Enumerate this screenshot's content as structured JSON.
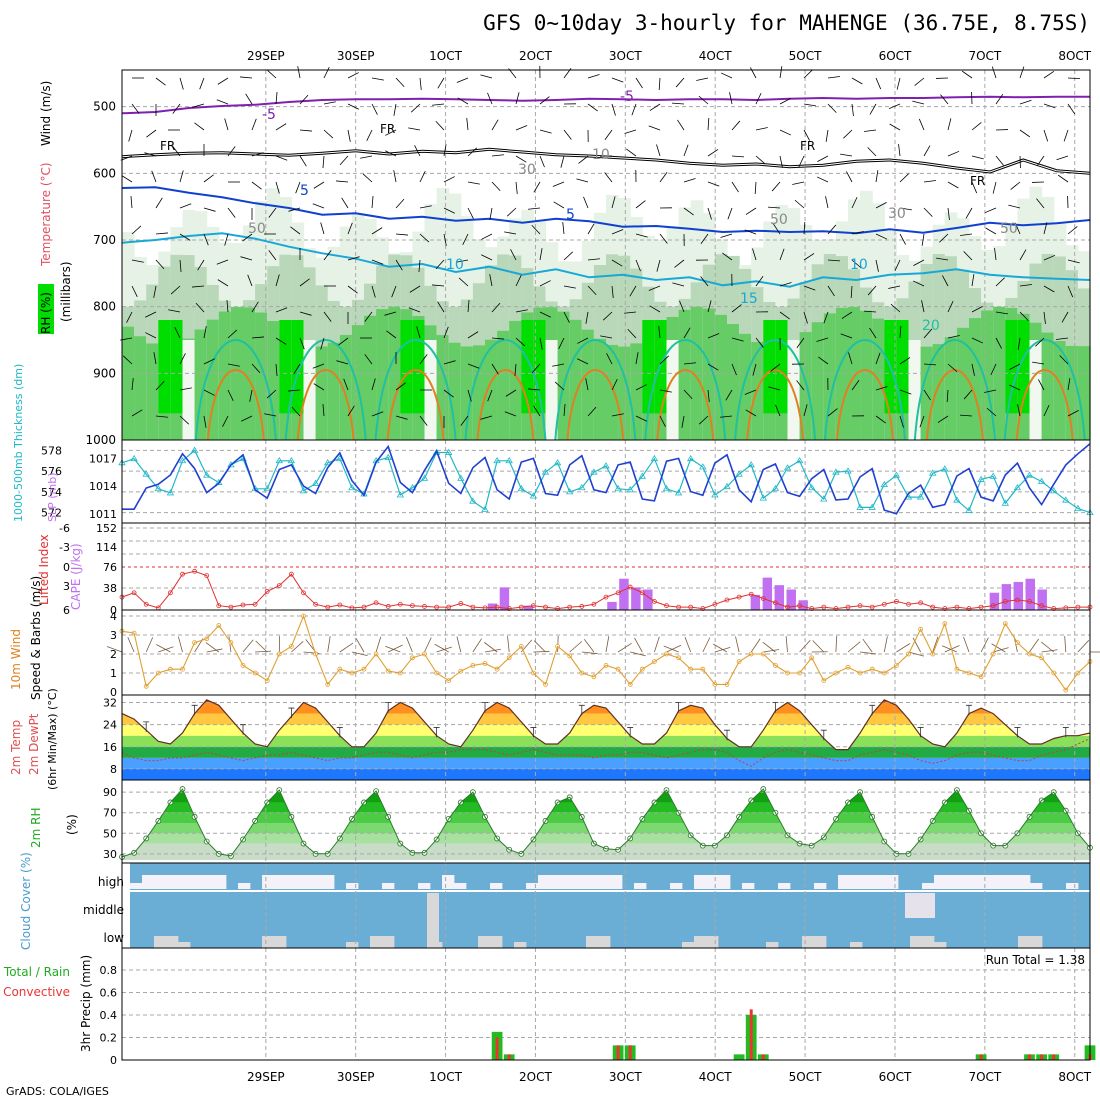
{
  "title": "GFS 0~10day 3-hourly for MAHENGE (36.75E, 8.75S)",
  "footer": "GrADS: COLA/IGES",
  "x_tick_labels": [
    "29SEP",
    "30SEP",
    "1OCT",
    "2OCT",
    "3OCT",
    "4OCT",
    "5OCT",
    "6OCT",
    "7OCT",
    "8OCT"
  ],
  "colors": {
    "grid": "#a8a8a8",
    "rh_green": "#00dd00",
    "temp_blue": "#1040d0",
    "temp_cyan": "#18a8d8",
    "thickness": "#20b8c8",
    "slp": "#2040d0",
    "cape": "#c070f0",
    "lifted": "#e03030",
    "wind": "#e0a030",
    "rain_total": "#22bb22",
    "rain_conv": "#ee3333",
    "cloud": "#6aaed6",
    "cloud_clear": "#f4f1f8"
  },
  "chart_data": [
    {
      "type": "area",
      "name": "upper-air",
      "ylabel_parts": [
        "RH (%)",
        "Temperature (°C)",
        "Wind (m/s)"
      ],
      "ylabel_unit": "(millibars)",
      "y_ticks": [
        500,
        600,
        700,
        800,
        900,
        1000
      ],
      "contour_labels": [
        "FR",
        "FR",
        "FR",
        "FR",
        "-5",
        "-5",
        "5",
        "5",
        "10",
        "10",
        "15",
        "20",
        "50",
        "50",
        "30",
        "10",
        "50",
        "30"
      ],
      "freezing_level_mb": [
        575,
        572,
        570,
        569,
        571,
        573,
        570,
        566,
        571,
        567,
        569,
        564,
        568,
        572,
        574,
        577,
        580,
        585,
        588,
        586,
        590,
        588,
        582,
        580,
        585,
        592,
        598,
        580,
        596,
        600
      ],
      "minus5_mb": [
        510,
        508,
        502,
        499,
        497,
        493,
        490,
        489,
        489,
        488,
        489,
        490,
        491,
        490,
        488,
        489,
        490,
        489,
        489,
        490,
        488,
        487,
        488,
        487,
        487,
        486,
        485,
        486,
        485,
        485
      ],
      "plus5_mb": [
        622,
        621,
        629,
        636,
        645,
        652,
        662,
        660,
        668,
        665,
        671,
        668,
        674,
        668,
        672,
        680,
        679,
        683,
        688,
        686,
        688,
        687,
        690,
        684,
        689,
        682,
        674,
        678,
        675,
        670
      ],
      "plus10_mb": [
        704,
        700,
        694,
        690,
        698,
        710,
        720,
        728,
        740,
        736,
        748,
        740,
        752,
        744,
        756,
        752,
        760,
        756,
        768,
        762,
        770,
        756,
        760,
        752,
        750,
        744,
        752,
        756,
        758,
        760
      ]
    },
    {
      "type": "line",
      "name": "thickness-slp",
      "ylabel_left": "1000-500mb Thickness (dm)",
      "ylabel_right": "SLP (mb)",
      "left_ticks": [
        578,
        576,
        574,
        572
      ],
      "right_ticks": [
        1017,
        1014,
        1011
      ],
      "series": [
        {
          "name": "Thickness",
          "values": [
            576.8,
            577.2,
            575.7,
            574.3,
            573.9,
            577.0,
            578.0,
            575.6,
            574.9,
            576.6,
            577.2,
            574.3,
            574.3,
            577.0,
            577.0,
            574.1,
            574.8,
            576.8,
            577.2,
            574.4,
            573.8,
            577.0,
            577.3,
            573.7,
            574.4,
            575.3,
            577.8,
            577.8,
            575.3,
            573.1,
            572.3,
            577.0,
            577.0,
            574.3,
            573.6,
            575.9,
            576.8,
            574.0,
            574.4,
            575.9,
            576.5,
            574.3,
            574.2,
            575.5,
            577.2,
            574.3,
            573.9,
            577.2,
            576.4,
            573.7,
            574.5,
            575.7,
            576.6,
            573.4,
            574.3,
            576.3,
            577.0,
            574.4,
            573.3,
            575.9,
            576.0,
            572.5,
            572.5,
            574.7,
            575.6,
            573.5,
            573.5,
            575.8,
            576.2,
            573.2,
            572.2,
            575.2,
            575.5,
            572.9,
            574.4,
            575.6,
            575.0,
            574.1,
            573.2,
            572.4,
            572.0
          ]
        },
        {
          "name": "SLP",
          "values": [
            1011.5,
            1011.5,
            1013.8,
            1014.2,
            1015.2,
            1017.5,
            1015.9,
            1013.3,
            1014.3,
            1016.3,
            1017.4,
            1013.6,
            1012.7,
            1015.8,
            1016.3,
            1014.0,
            1013.2,
            1016.0,
            1017.6,
            1014.6,
            1013.0,
            1016.6,
            1018.3,
            1014.4,
            1013.3,
            1015.7,
            1017.8,
            1014.3,
            1013.2,
            1016.0,
            1017.1,
            1013.6,
            1012.6,
            1016.6,
            1017.0,
            1013.2,
            1013.0,
            1016.3,
            1017.3,
            1013.6,
            1013.3,
            1016.3,
            1016.6,
            1012.6,
            1012.4,
            1016.7,
            1017.0,
            1013.4,
            1013.0,
            1016.5,
            1017.4,
            1013.6,
            1012.3,
            1015.8,
            1016.4,
            1013.3,
            1012.9,
            1014.8,
            1015.8,
            1012.5,
            1012.6,
            1015.0,
            1015.9,
            1011.4,
            1011.0,
            1013.2,
            1014.1,
            1011.7,
            1012.0,
            1015.1,
            1015.9,
            1012.8,
            1012.4,
            1015.2,
            1016.5,
            1013.8,
            1012.0,
            1014.2,
            1016.3,
            1017.5,
            1018.6
          ]
        }
      ]
    },
    {
      "type": "bar",
      "name": "cape-lifted-index",
      "ylabel_left": "Lifted Index",
      "ylabel_right": "CAPE (J/kg)",
      "left_ticks": [
        "-6",
        "-3",
        "0",
        "3",
        "6"
      ],
      "right_ticks": [
        "152",
        "114",
        "76",
        "38",
        "0"
      ],
      "series": [
        {
          "name": "CAPE",
          "values": [
            0,
            0,
            0,
            0,
            0,
            0,
            0,
            0,
            0,
            0,
            0,
            0,
            0,
            0,
            0,
            0,
            0,
            0,
            0,
            0,
            0,
            0,
            0,
            0,
            0,
            0,
            0,
            0,
            0,
            0,
            0,
            12,
            42,
            0,
            8,
            0,
            0,
            0,
            0,
            0,
            0,
            15,
            58,
            42,
            38,
            0,
            0,
            0,
            0,
            0,
            0,
            0,
            0,
            28,
            60,
            46,
            38,
            18,
            0,
            0,
            0,
            0,
            0,
            0,
            0,
            0,
            0,
            0,
            0,
            0,
            0,
            0,
            0,
            32,
            48,
            52,
            58,
            38,
            0,
            0,
            0,
            0
          ]
        },
        {
          "name": "Lifted Index",
          "values": [
            4.2,
            3.6,
            5.2,
            5.7,
            3.6,
            1.0,
            0.6,
            1.2,
            5.4,
            5.6,
            5.3,
            5.2,
            3.4,
            2.6,
            1.0,
            3.6,
            5.2,
            5.6,
            5.3,
            5.7,
            5.6,
            5.0,
            5.5,
            5.2,
            5.4,
            5.5,
            5.6,
            5.6,
            5.1,
            5.6,
            5.7,
            5.6,
            5.8,
            5.6,
            5.4,
            5.6,
            5.8,
            5.6,
            5.5,
            5.2,
            4.2,
            3.6,
            2.8,
            3.6,
            4.8,
            5.4,
            5.6,
            5.6,
            5.8,
            5.2,
            4.6,
            4.2,
            3.8,
            4.4,
            5.0,
            5.6,
            5.4,
            5.8,
            5.6,
            5.8,
            5.6,
            5.4,
            5.6,
            5.2,
            4.8,
            5.2,
            5.0,
            5.6,
            5.8,
            5.6,
            5.8,
            5.6,
            5.4,
            4.8,
            4.6,
            4.8,
            5.4,
            5.8,
            5.7,
            5.6,
            5.6
          ]
        }
      ]
    },
    {
      "type": "line",
      "name": "10m-wind",
      "ylabel_left": "10m Wind",
      "ylabel_right": "Speed & Barbs (m/s)",
      "ylim": [
        0,
        4
      ],
      "series": [
        {
          "name": "Speed",
          "values": [
            3.2,
            3.1,
            0.3,
            1.0,
            1.2,
            1.2,
            2.6,
            2.8,
            3.5,
            2.6,
            1.4,
            1.0,
            0.6,
            2.0,
            2.4,
            4.0,
            2.0,
            0.4,
            1.2,
            1.0,
            1.2,
            2.0,
            1.1,
            1.0,
            1.8,
            2.0,
            1.0,
            0.6,
            1.1,
            1.4,
            1.5,
            1.2,
            1.8,
            2.4,
            1.0,
            0.4,
            2.4,
            1.9,
            1.0,
            0.8,
            1.4,
            1.2,
            0.4,
            1.2,
            1.6,
            2.0,
            1.8,
            1.2,
            1.2,
            0.4,
            0.4,
            1.6,
            2.0,
            2.0,
            1.4,
            1.0,
            1.0,
            1.8,
            0.6,
            1.0,
            1.3,
            1.0,
            1.2,
            1.0,
            1.4,
            2.0,
            3.3,
            2.0,
            3.6,
            1.2,
            1.0,
            0.8,
            2.0,
            3.6,
            2.6,
            2.0,
            1.8,
            1.0,
            0.1,
            1.0,
            1.6
          ]
        }
      ]
    },
    {
      "type": "area",
      "name": "2m-temp",
      "ylabel_left": "2m Temp",
      "ylabel_mid": "2m DewPt",
      "ylabel_right": "(6hr Min/Max) (°C)",
      "y_ticks": [
        32,
        24,
        16,
        8
      ],
      "series": [
        {
          "name": "Temperature",
          "values": [
            28,
            26,
            22,
            18,
            17,
            21,
            28,
            33,
            31,
            26,
            21,
            17,
            16,
            22,
            27,
            32,
            30,
            25,
            20,
            16,
            16,
            21,
            29,
            32,
            30,
            25,
            20,
            17,
            16,
            22,
            29,
            32,
            30,
            25,
            20,
            17,
            17,
            21,
            28,
            31,
            30,
            25,
            20,
            17,
            17,
            21,
            29,
            31,
            30,
            24,
            19,
            16,
            16,
            22,
            29,
            32,
            29,
            24,
            19,
            15,
            15,
            21,
            28,
            33,
            31,
            26,
            20,
            17,
            16,
            21,
            28,
            30,
            28,
            24,
            20,
            17,
            17,
            19,
            20,
            20,
            21
          ]
        },
        {
          "name": "DewPt",
          "values": [
            14,
            12,
            11,
            11,
            12,
            12,
            13,
            14,
            13,
            12,
            11,
            12,
            13,
            13,
            14,
            13,
            12,
            11,
            12,
            12,
            13,
            14,
            14,
            13,
            12,
            13,
            14,
            14,
            15,
            15,
            15,
            14,
            13,
            14,
            15,
            14,
            13,
            13,
            13,
            12,
            13,
            13,
            14,
            14,
            13,
            12,
            13,
            14,
            15,
            15,
            14,
            11,
            9,
            12,
            14,
            15,
            14,
            13,
            12,
            11,
            11,
            13,
            14,
            15,
            14,
            13,
            11,
            10,
            11,
            13,
            14,
            14,
            13,
            12,
            11,
            11,
            13,
            14,
            15,
            17,
            19
          ]
        }
      ]
    },
    {
      "type": "area",
      "name": "2m-rh",
      "ylabel_left": "2m RH",
      "ylabel_right": "(%)",
      "y_ticks": [
        90,
        70,
        50,
        30
      ],
      "series": [
        {
          "name": "RH",
          "values": [
            27,
            31,
            45,
            62,
            80,
            93,
            66,
            42,
            30,
            28,
            44,
            62,
            80,
            92,
            66,
            40,
            30,
            30,
            45,
            64,
            80,
            91,
            66,
            40,
            31,
            31,
            44,
            64,
            80,
            90,
            66,
            45,
            34,
            30,
            44,
            62,
            80,
            85,
            66,
            40,
            35,
            34,
            45,
            64,
            80,
            92,
            70,
            48,
            38,
            38,
            48,
            66,
            82,
            93,
            70,
            48,
            40,
            38,
            46,
            64,
            80,
            90,
            66,
            42,
            30,
            30,
            44,
            62,
            80,
            92,
            72,
            50,
            38,
            38,
            50,
            66,
            82,
            90,
            72,
            50,
            36
          ]
        }
      ]
    },
    {
      "type": "bar",
      "name": "cloud-cover",
      "ylabel": "Cloud Cover (%)",
      "row_labels": [
        "high",
        "middle",
        "low"
      ]
    },
    {
      "type": "bar",
      "name": "3hr-precip",
      "ylabel_left": "Total / Rain",
      "ylabel_left2": "Convective",
      "ylabel_right": "3hr Precip (mm)",
      "run_total": "Run Total = 1.38",
      "y_ticks": [
        "0.8",
        "0.6",
        "0.4",
        "0.2",
        "0"
      ],
      "series": [
        {
          "name": "Total",
          "values": [
            0,
            0,
            0,
            0,
            0,
            0,
            0,
            0,
            0,
            0,
            0,
            0,
            0,
            0,
            0,
            0,
            0,
            0,
            0,
            0,
            0,
            0,
            0,
            0,
            0,
            0,
            0,
            0,
            0,
            0,
            0,
            0.25,
            0.05,
            0,
            0,
            0,
            0,
            0,
            0,
            0,
            0,
            0.13,
            0.13,
            0,
            0,
            0,
            0,
            0,
            0,
            0,
            0,
            0.05,
            0.4,
            0.05,
            0,
            0,
            0,
            0,
            0,
            0,
            0,
            0,
            0,
            0,
            0,
            0,
            0,
            0,
            0,
            0,
            0,
            0.05,
            0,
            0,
            0,
            0.05,
            0.05,
            0.05,
            0,
            0,
            0.13
          ]
        },
        {
          "name": "Convective",
          "values": [
            0,
            0,
            0,
            0,
            0,
            0,
            0,
            0,
            0,
            0,
            0,
            0,
            0,
            0,
            0,
            0,
            0,
            0,
            0,
            0,
            0,
            0,
            0,
            0,
            0,
            0,
            0,
            0,
            0,
            0,
            0,
            0.2,
            0.05,
            0,
            0,
            0,
            0,
            0,
            0,
            0,
            0,
            0.13,
            0.13,
            0,
            0,
            0,
            0,
            0,
            0,
            0,
            0,
            0,
            0.45,
            0.05,
            0,
            0,
            0,
            0,
            0,
            0,
            0,
            0,
            0,
            0,
            0,
            0,
            0,
            0,
            0,
            0,
            0,
            0.05,
            0,
            0,
            0,
            0.05,
            0.05,
            0.05,
            0,
            0,
            0.05
          ]
        }
      ]
    }
  ]
}
